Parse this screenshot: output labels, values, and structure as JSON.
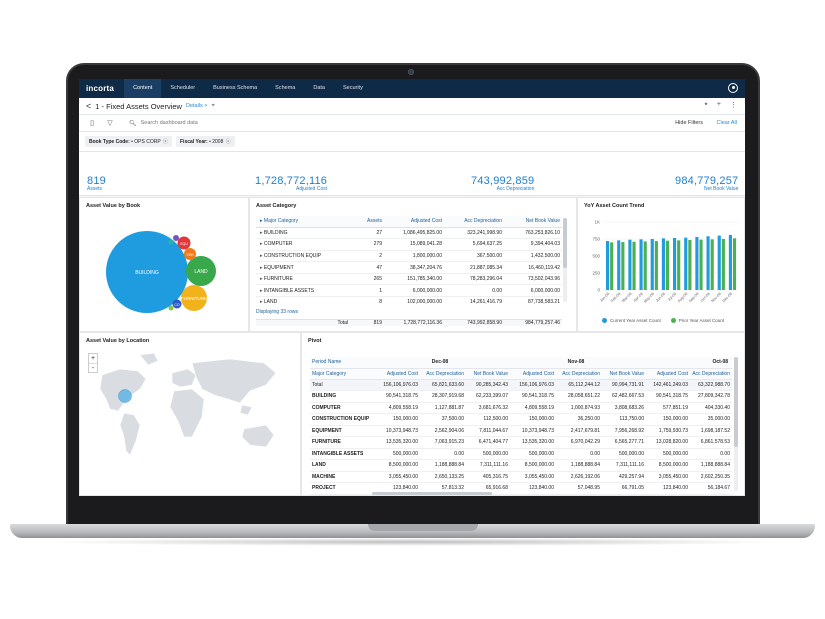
{
  "nav": {
    "brand": "incorta",
    "tabs": [
      "Content",
      "Scheduler",
      "Business Schema",
      "Schema",
      "Data",
      "Security"
    ]
  },
  "titlebar": {
    "back": "<",
    "title": "1 - Fixed Assets Overview",
    "details": "Details >",
    "pin": "⌖"
  },
  "toolbar": {
    "search_placeholder": "Search dashboard data",
    "hide_filters": "Hide Filters",
    "clear_all": "Clear All"
  },
  "filters": [
    {
      "label": "Book Type Code:",
      "value": "• OPS CORP",
      "x": "ⓧ"
    },
    {
      "label": "Fiscal Year:",
      "value": "• 2008",
      "x": "ⓧ"
    }
  ],
  "kpis": [
    {
      "value": "819",
      "label": "Assets"
    },
    {
      "value": "1,728,772,116",
      "label": "Adjusted Cost"
    },
    {
      "value": "743,992,859",
      "label": "Acc Depreciation"
    },
    {
      "value": "984,779,257",
      "label": "Net Book Value"
    }
  ],
  "asset_value_by_book": {
    "title": "Asset Value by Book",
    "bubbles": [
      {
        "label": "BUILDING",
        "color": "#1f9be0"
      },
      {
        "label": "LAND",
        "color": "#39a84a"
      },
      {
        "label": "FURNITURE",
        "color": "#f2b21b"
      },
      {
        "label": "EQU",
        "color": "#e0383b"
      },
      {
        "label": "VEH",
        "color": "#f07a1a"
      },
      {
        "label": "CO",
        "color": "#2e59c7"
      }
    ]
  },
  "asset_category": {
    "title": "Asset Category",
    "headers": [
      "Major Category",
      "Assets",
      "Adjusted Cost",
      "Acc Depreciation",
      "Net Book Value"
    ],
    "rows": [
      [
        "BUILDING",
        "27",
        "1,086,495,825.00",
        "323,241,998.90",
        "763,253,826.10"
      ],
      [
        "COMPUTER",
        "279",
        "15,089,041.28",
        "5,694,637.25",
        "9,394,404.03"
      ],
      [
        "CONSTRUCTION EQUIP",
        "2",
        "1,800,000.00",
        "367,500.00",
        "1,432,500.00"
      ],
      [
        "EQUIPMENT",
        "47",
        "38,347,204.76",
        "21,887,085.34",
        "16,460,119.42"
      ],
      [
        "FURNITURE",
        "265",
        "151,785,340.00",
        "78,283,296.04",
        "73,502,043.96"
      ],
      [
        "INTANGIBLE ASSETS",
        "1",
        "6,000,000.00",
        "0.00",
        "6,000,000.00"
      ],
      [
        "LAND",
        "8",
        "102,000,000.00",
        "14,261,416.79",
        "87,738,583.21"
      ]
    ],
    "footer_rows": "Displaying 33 rows",
    "total": [
      "Total",
      "819",
      "1,728,772,116.36",
      "743,992,858.90",
      "984,779,257.46"
    ]
  },
  "yoy_chart": {
    "title": "YoY Asset Count Trend",
    "legend": [
      "Current Year Asset Count",
      "Prior Year Asset Count"
    ],
    "colors": [
      "#1f9be0",
      "#4caf50"
    ],
    "y_ticks": [
      "1K",
      "750",
      "500",
      "250",
      "0"
    ],
    "x_labels": [
      "Jan-08",
      "Feb-08",
      "Mar-08",
      "Apr-08",
      "May-08",
      "Jun-08",
      "Jul-08",
      "Aug-08",
      "Sep-08",
      "Oct-08",
      "Nov-08",
      "Dec-08"
    ]
  },
  "chart_data": {
    "type": "bar",
    "title": "YoY Asset Count Trend",
    "categories": [
      "Jan-08",
      "Feb-08",
      "Mar-08",
      "Apr-08",
      "May-08",
      "Jun-08",
      "Jul-08",
      "Aug-08",
      "Sep-08",
      "Oct-08",
      "Nov-08",
      "Dec-08"
    ],
    "series": [
      {
        "name": "Current Year Asset Count",
        "values": [
          720,
          730,
          740,
          745,
          750,
          760,
          765,
          770,
          780,
          790,
          800,
          810
        ]
      },
      {
        "name": "Prior Year Asset Count",
        "values": [
          700,
          705,
          710,
          715,
          720,
          725,
          730,
          735,
          740,
          745,
          750,
          760
        ]
      }
    ],
    "ylim": [
      0,
      1000
    ]
  },
  "location_map": {
    "title": "Asset Value by Location",
    "zoom_in": "+",
    "zoom_out": "-"
  },
  "pivot": {
    "title": "Pivot",
    "period_label": "Period Name",
    "periods": [
      "Dec-08",
      "Nov-08",
      "Oct-08"
    ],
    "category_label": "Major Category",
    "subheaders": [
      "Adjusted Cost",
      "Acc Depreciation",
      "Net Book Value"
    ],
    "rows": [
      [
        "Total",
        "156,106,976.03",
        "65,821,633.60",
        "90,285,342.43",
        "156,106,976.03",
        "65,112,244.12",
        "90,994,731.91",
        "142,461,249.03",
        "63,322,988.70"
      ],
      [
        "BUILDING",
        "90,541,318.75",
        "28,307,919.68",
        "62,233,399.07",
        "90,541,318.75",
        "28,058,651.22",
        "62,482,667.53",
        "90,541,318.75",
        "27,809,342.78"
      ],
      [
        "COMPUTER",
        "4,809,558.19",
        "1,127,881.87",
        "3,681,676.32",
        "4,809,558.19",
        "1,000,874.93",
        "3,808,683.26",
        "577,851.19",
        "404,330.40"
      ],
      [
        "CONSTRUCTION EQUIP",
        "150,000.00",
        "37,500.00",
        "112,500.00",
        "150,000.00",
        "36,250.00",
        "113,750.00",
        "150,000.00",
        "35,000.00"
      ],
      [
        "EQUIPMENT",
        "10,373,948.73",
        "2,562,904.06",
        "7,811,044.67",
        "10,373,948.73",
        "2,417,679.81",
        "7,956,268.92",
        "1,759,930.73",
        "1,698,187.52"
      ],
      [
        "FURNITURE",
        "13,535,320.00",
        "7,063,915.23",
        "6,471,404.77",
        "13,535,320.00",
        "6,970,042.29",
        "6,565,277.71",
        "13,028,820.00",
        "6,861,578.53"
      ],
      [
        "INTANGIBLE ASSETS",
        "500,000.00",
        "0.00",
        "500,000.00",
        "500,000.00",
        "0.00",
        "500,000.00",
        "500,000.00",
        "0.00"
      ],
      [
        "LAND",
        "8,500,000.00",
        "1,188,888.84",
        "7,311,111.16",
        "8,500,000.00",
        "1,188,888.84",
        "7,311,111.16",
        "8,500,000.00",
        "1,188,888.84"
      ],
      [
        "MACHINE",
        "3,055,450.00",
        "2,650,133.25",
        "405,316.75",
        "3,055,450.00",
        "2,626,192.06",
        "429,257.94",
        "3,055,450.00",
        "2,602,250.35"
      ],
      [
        "PROJECT",
        "123,840.00",
        "57,813.32",
        "65,916.68",
        "123,840.00",
        "57,048.95",
        "66,791.05",
        "123,840.00",
        "56,184.67"
      ]
    ]
  }
}
